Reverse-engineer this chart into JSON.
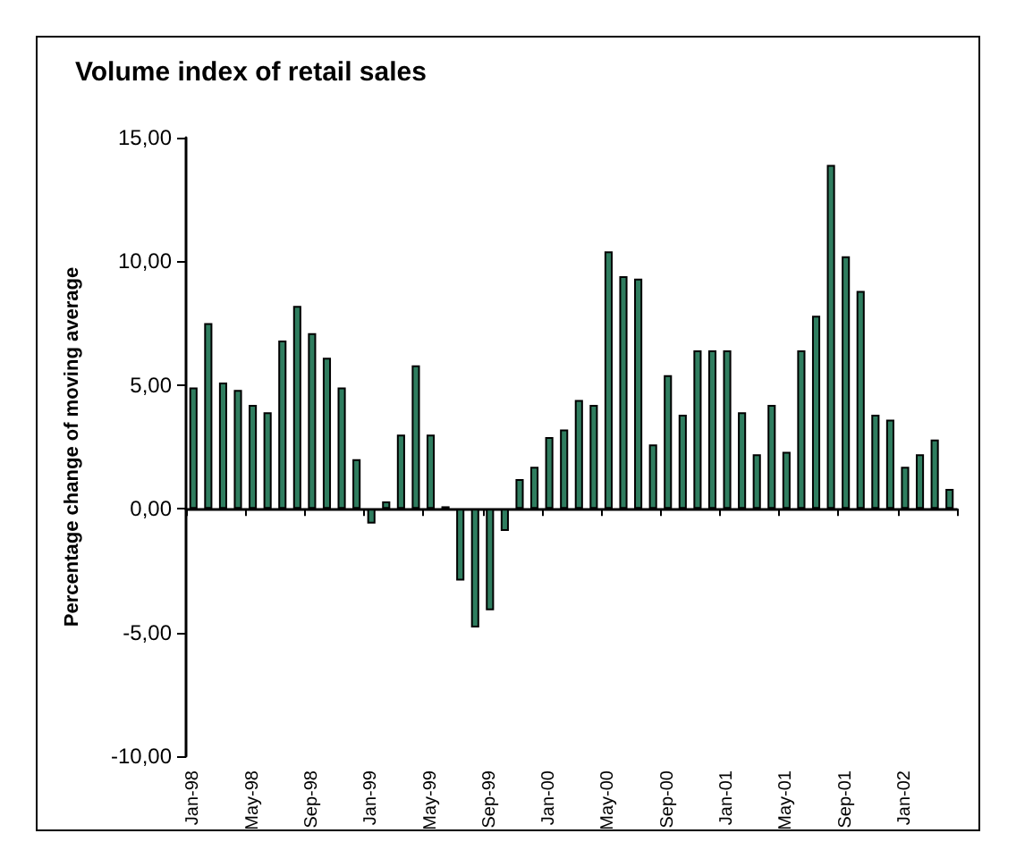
{
  "chart_data": {
    "type": "bar",
    "title": "Volume index of retail sales",
    "ylabel": "Percentage change of moving average",
    "categories": [
      "Jan-98",
      null,
      null,
      null,
      "May-98",
      null,
      null,
      null,
      "Sep-98",
      null,
      null,
      null,
      "Jan-99",
      null,
      null,
      null,
      "May-99",
      null,
      null,
      null,
      "Sep-99",
      null,
      null,
      null,
      "Jan-00",
      null,
      null,
      null,
      "May-00",
      null,
      null,
      null,
      "Sep-00",
      null,
      null,
      null,
      "Jan-01",
      null,
      null,
      null,
      "May-01",
      null,
      null,
      null,
      "Sep-01",
      null,
      null,
      null,
      "Jan-02",
      null,
      null,
      null
    ],
    "values": [
      4.9,
      7.5,
      5.1,
      4.8,
      4.2,
      3.9,
      6.8,
      8.2,
      7.1,
      6.1,
      4.9,
      2.0,
      -0.6,
      0.3,
      3.0,
      5.8,
      3.0,
      0.1,
      -2.9,
      -4.8,
      -4.1,
      -0.9,
      1.2,
      1.7,
      2.9,
      3.2,
      4.4,
      4.2,
      10.4,
      9.4,
      9.3,
      2.6,
      5.4,
      3.8,
      6.4,
      6.4,
      6.4,
      3.9,
      2.2,
      4.2,
      2.3,
      6.4,
      7.8,
      13.9,
      10.2,
      8.8,
      3.8,
      3.6,
      1.7,
      2.2,
      2.8,
      0.8
    ],
    "color": "#2f7d5f",
    "ylim": [
      -10,
      15
    ],
    "yticks": [
      {
        "value": -10,
        "label": "-10,00"
      },
      {
        "value": -5,
        "label": "-5,00"
      },
      {
        "value": 0,
        "label": "0,00"
      },
      {
        "value": 5,
        "label": "5,00"
      },
      {
        "value": 10,
        "label": "10,00"
      },
      {
        "value": 15,
        "label": "15,00"
      }
    ]
  }
}
